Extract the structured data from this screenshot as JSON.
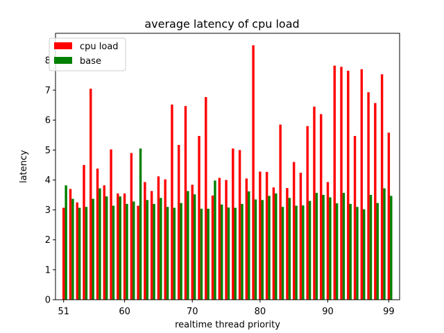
{
  "chart_data": {
    "type": "bar",
    "title": "average latency of cpu load",
    "xlabel": "realtime thread priority",
    "ylabel": "latency",
    "x": [
      51,
      52,
      53,
      54,
      55,
      56,
      57,
      58,
      59,
      60,
      61,
      62,
      63,
      64,
      65,
      66,
      67,
      68,
      69,
      70,
      71,
      72,
      73,
      74,
      75,
      76,
      77,
      78,
      79,
      80,
      81,
      82,
      83,
      84,
      85,
      86,
      87,
      88,
      89,
      90,
      91,
      92,
      93,
      94,
      95,
      96,
      97,
      98,
      99
    ],
    "x_ticks": [
      51,
      60,
      70,
      80,
      90,
      99
    ],
    "y_ticks": [
      0,
      1,
      2,
      3,
      4,
      5,
      6,
      7,
      8
    ],
    "ylim": [
      0,
      8.9
    ],
    "grid": false,
    "legend_position": "top-left",
    "series": [
      {
        "name": "cpu load",
        "color": "#ff0000",
        "values": [
          3.07,
          3.7,
          3.25,
          4.5,
          7.05,
          4.38,
          3.82,
          5.02,
          3.55,
          3.55,
          4.9,
          3.14,
          3.93,
          3.63,
          4.12,
          4.02,
          6.52,
          5.17,
          6.47,
          3.84,
          5.47,
          6.77,
          3.48,
          4.07,
          4.0,
          5.05,
          5.0,
          4.05,
          8.5,
          4.28,
          4.27,
          3.75,
          5.85,
          3.73,
          4.6,
          4.24,
          5.8,
          6.45,
          6.2,
          3.93,
          7.82,
          7.78,
          7.65,
          5.47,
          7.7,
          6.93,
          6.57,
          7.53,
          5.58
        ]
      },
      {
        "name": "base",
        "color": "#008000",
        "values": [
          3.82,
          3.37,
          3.07,
          3.1,
          3.37,
          3.72,
          3.45,
          3.14,
          3.45,
          3.2,
          3.28,
          5.05,
          3.33,
          3.2,
          3.4,
          3.1,
          3.07,
          3.23,
          3.63,
          3.52,
          3.04,
          3.04,
          3.98,
          3.18,
          3.08,
          3.07,
          3.2,
          3.62,
          3.35,
          3.33,
          3.47,
          3.55,
          3.1,
          3.4,
          3.14,
          3.15,
          3.3,
          3.57,
          3.5,
          3.42,
          3.22,
          3.57,
          3.2,
          3.1,
          3.02,
          3.5,
          3.23,
          3.72,
          3.47
        ]
      }
    ]
  }
}
